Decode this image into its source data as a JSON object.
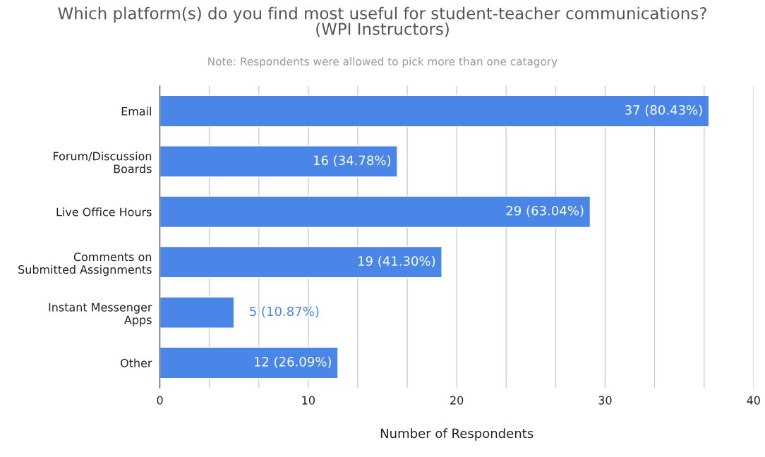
{
  "chart_data": {
    "type": "bar",
    "orientation": "horizontal",
    "title": "Which platform(s) do you find most useful for student-teacher communications?\n(WPI Instructors)",
    "subtitle": "Note: Respondents were allowed to pick more than one catagory",
    "xlabel": "Number of Respondents",
    "categories": [
      "Email",
      "Forum/Discussion\nBoards",
      "Live Office Hours",
      "Comments on\nSubmitted Assignments",
      "Instant Messenger\nApps",
      "Other"
    ],
    "values": [
      37,
      16,
      29,
      19,
      5,
      12
    ],
    "color": "#4a86e8",
    "value_labels": [
      "37 (80.43%)",
      "16 (34.78%)",
      "29 (63.04%)",
      "19 (41.30%)",
      "5 (10.87%)",
      "12 (26.09%)"
    ],
    "xlim": [
      0,
      40
    ],
    "xticks": [
      0,
      {
        "value": 3.33,
        "label": null
      },
      {
        "value": 6.67,
        "label": null
      },
      10,
      {
        "value": 13.33,
        "label": null
      },
      {
        "value": 16.67,
        "label": null
      },
      20,
      {
        "value": 23.33,
        "label": null
      },
      {
        "value": 26.67,
        "label": null
      },
      30,
      {
        "value": 33.33,
        "label": null
      },
      {
        "value": 36.67,
        "label": null
      },
      40
    ],
    "grid": "x"
  }
}
